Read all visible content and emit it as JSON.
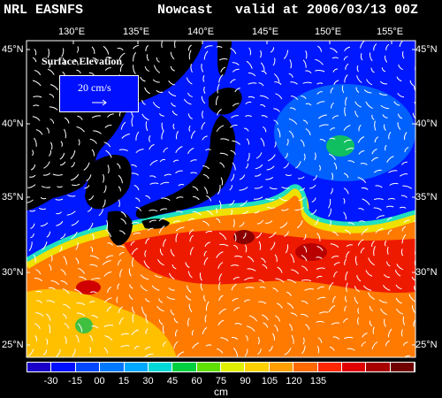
{
  "header": {
    "model": "NRL EASNFS",
    "mode": "Nowcast",
    "valid": "valid at 2006/03/13 00Z"
  },
  "axes": {
    "lon_labels": [
      "130°E",
      "135°E",
      "140°E",
      "145°E",
      "150°E",
      "155°E"
    ],
    "lat_labels": [
      "45°N",
      "40°N",
      "35°N",
      "30°N",
      "25°N"
    ]
  },
  "inset": {
    "title": "Surface Elevation",
    "reference_vector": "20 cm/s"
  },
  "colorbar": {
    "ticks": [
      "-30",
      "-15",
      "00",
      "15",
      "30",
      "45",
      "60",
      "75",
      "90",
      "105",
      "120",
      "135"
    ],
    "unit": "cm",
    "colors": [
      "#1a00c8",
      "#0010ff",
      "#0048ff",
      "#0078ff",
      "#00a8ff",
      "#00d8d8",
      "#00d040",
      "#60e000",
      "#e0f000",
      "#ffd000",
      "#ffa000",
      "#ff6a00",
      "#ff2800",
      "#e00000",
      "#a80000",
      "#700000"
    ]
  },
  "map_colors": {
    "land": "#000000",
    "ocean_cold": "#0018ff",
    "ocean_cool": "#0060ff",
    "kuroshio_front": "#30e0a0",
    "warm_yellow": "#f0e000",
    "warm_orange": "#ff7800",
    "warm_red": "#ee1000",
    "eddy_dark": "#900000",
    "vectors": "#ffffff"
  }
}
